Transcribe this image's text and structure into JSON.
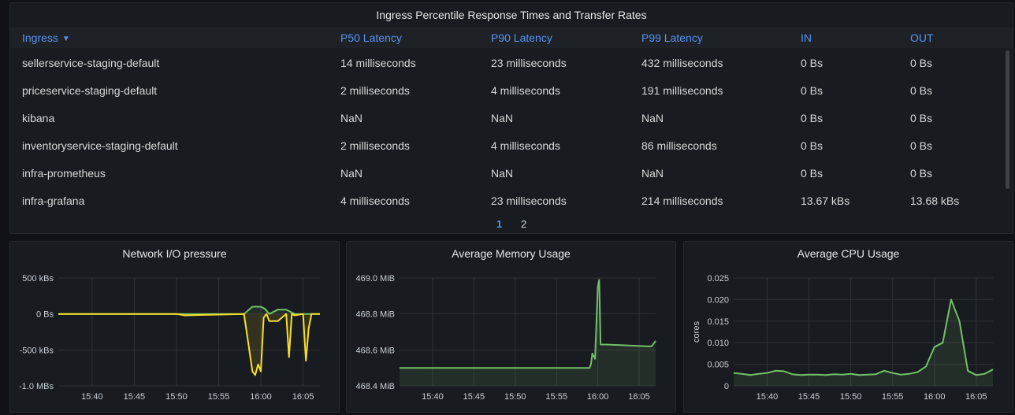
{
  "table": {
    "title": "Ingress Percentile Response Times and Transfer Rates",
    "columns": [
      "Ingress",
      "P50 Latency",
      "P90 Latency",
      "P99 Latency",
      "IN",
      "OUT"
    ],
    "rows": [
      [
        "sellerservice-staging-default",
        "14 milliseconds",
        "23 milliseconds",
        "432 milliseconds",
        "0 Bs",
        "0 Bs"
      ],
      [
        "priceservice-staging-default",
        "2 milliseconds",
        "4 milliseconds",
        "191 milliseconds",
        "0 Bs",
        "0 Bs"
      ],
      [
        "kibana",
        "NaN",
        "NaN",
        "NaN",
        "0 Bs",
        "0 Bs"
      ],
      [
        "inventoryservice-staging-default",
        "2 milliseconds",
        "4 milliseconds",
        "86 milliseconds",
        "0 Bs",
        "0 Bs"
      ],
      [
        "infra-prometheus",
        "NaN",
        "NaN",
        "NaN",
        "0 Bs",
        "0 Bs"
      ],
      [
        "infra-grafana",
        "4 milliseconds",
        "23 milliseconds",
        "214 milliseconds",
        "13.67 kBs",
        "13.68 kBs"
      ]
    ],
    "pages": [
      "1",
      "2"
    ],
    "active_page": "1"
  },
  "colors": {
    "header": "#5794f2",
    "green": "#73bf69",
    "yellow": "#fade2a",
    "grid": "#2f3237",
    "axis_text": "#c7d0d9"
  },
  "chart_data": [
    {
      "type": "line",
      "title": "Network I/O pressure",
      "ylabel": "",
      "y_unit": "kBs",
      "ylim": [
        -1000,
        500
      ],
      "yticks": [
        "500 kBs",
        "0 Bs",
        "-500 kBs",
        "-1.0 MBs"
      ],
      "yticks_values": [
        500,
        0,
        -500,
        -1000
      ],
      "xlim": [
        "15:36",
        "16:07"
      ],
      "xticks": [
        "15:40",
        "15:45",
        "15:50",
        "15:55",
        "16:00",
        "16:05"
      ],
      "series": [
        {
          "color": "#73bf69",
          "x": [
            "15:36",
            "15:58",
            "15:59",
            "16:00",
            "16:00:30",
            "16:01",
            "16:02",
            "16:03",
            "16:04",
            "16:05",
            "16:06",
            "16:07"
          ],
          "y": [
            0,
            0,
            100,
            100,
            70,
            0,
            60,
            60,
            0,
            0,
            0,
            0
          ]
        },
        {
          "color": "#fade2a",
          "x": [
            "15:36",
            "15:50",
            "15:51",
            "15:58",
            "15:58:30",
            "15:59",
            "15:59:20",
            "15:59:40",
            "16:00",
            "16:00:20",
            "16:00:40",
            "16:01",
            "16:02",
            "16:03",
            "16:03:20",
            "16:03:40",
            "16:04",
            "16:05",
            "16:05:20",
            "16:05:40",
            "16:06",
            "16:07"
          ],
          "y": [
            0,
            0,
            -20,
            0,
            -400,
            -800,
            -850,
            -700,
            -800,
            -50,
            0,
            -100,
            -100,
            0,
            -600,
            0,
            -20,
            0,
            -650,
            -200,
            0,
            0
          ]
        }
      ]
    },
    {
      "type": "line",
      "title": "Average Memory Usage",
      "ylabel": "",
      "ylim": [
        468.4,
        469.0
      ],
      "yticks": [
        "469.0 MiB",
        "468.8 MiB",
        "468.6 MiB",
        "468.4 MiB"
      ],
      "yticks_values": [
        469.0,
        468.8,
        468.6,
        468.4
      ],
      "xlim": [
        "15:36",
        "16:07"
      ],
      "xticks": [
        "15:40",
        "15:45",
        "15:50",
        "15:55",
        "16:00",
        "16:05"
      ],
      "series": [
        {
          "color": "#73bf69",
          "x": [
            "15:36",
            "15:59",
            "15:59:10",
            "15:59:20",
            "15:59:40",
            "16:00",
            "16:00:10",
            "16:00:20",
            "16:01",
            "16:06",
            "16:06:30",
            "16:07"
          ],
          "y": [
            468.5,
            468.5,
            468.52,
            468.58,
            468.55,
            468.95,
            468.99,
            468.63,
            468.63,
            468.62,
            468.62,
            468.65
          ]
        }
      ]
    },
    {
      "type": "line",
      "title": "Average CPU Usage",
      "ylabel": "cores",
      "ylim": [
        0,
        0.025
      ],
      "yticks": [
        "0.025",
        "0.020",
        "0.015",
        "0.010",
        "0.005",
        "0"
      ],
      "yticks_values": [
        0.025,
        0.02,
        0.015,
        0.01,
        0.005,
        0
      ],
      "xlim": [
        "15:36",
        "16:07"
      ],
      "xticks": [
        "15:40",
        "15:45",
        "15:50",
        "15:55",
        "16:00",
        "16:05"
      ],
      "series": [
        {
          "color": "#73bf69",
          "x": [
            "15:36",
            "15:37",
            "15:38",
            "15:39",
            "15:40",
            "15:41",
            "15:42",
            "15:43",
            "15:44",
            "15:45",
            "15:46",
            "15:47",
            "15:48",
            "15:49",
            "15:50",
            "15:51",
            "15:52",
            "15:53",
            "15:54",
            "15:55",
            "15:56",
            "15:57",
            "15:58",
            "15:59",
            "16:00",
            "16:01",
            "16:02",
            "16:03",
            "16:04",
            "16:05",
            "16:06",
            "16:07"
          ],
          "y": [
            0.003,
            0.0028,
            0.0025,
            0.0028,
            0.003,
            0.0035,
            0.0034,
            0.0027,
            0.0025,
            0.0026,
            0.0026,
            0.0025,
            0.0027,
            0.0026,
            0.0028,
            0.0025,
            0.0026,
            0.0027,
            0.0035,
            0.003,
            0.0026,
            0.0028,
            0.0032,
            0.0045,
            0.009,
            0.01,
            0.02,
            0.015,
            0.0035,
            0.0025,
            0.0028,
            0.0038
          ]
        }
      ]
    }
  ]
}
